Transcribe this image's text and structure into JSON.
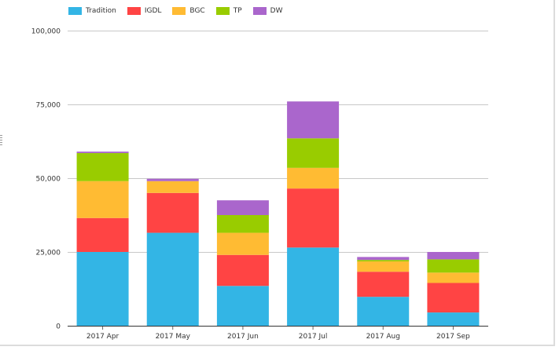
{
  "chart_data": {
    "type": "bar",
    "stacked": true,
    "title": "",
    "xlabel": "",
    "ylabel": "",
    "categories": [
      "2017 Apr",
      "2017 May",
      "2017 Jun",
      "2017 Jul",
      "2017 Aug",
      "2017 Sep"
    ],
    "series": [
      {
        "name": "Tradition",
        "color": "#33b5e5",
        "values": [
          25000,
          31500,
          13500,
          26500,
          9800,
          4500
        ]
      },
      {
        "name": "IGDL",
        "color": "#ff4444",
        "values": [
          11500,
          13500,
          10500,
          20000,
          8500,
          10000
        ]
      },
      {
        "name": "BGC",
        "color": "#ffbb33",
        "values": [
          12500,
          4000,
          7500,
          7000,
          3500,
          3500
        ]
      },
      {
        "name": "TP",
        "color": "#99cc00",
        "values": [
          9500,
          0,
          6000,
          10000,
          500,
          4500
        ]
      },
      {
        "name": "DW",
        "color": "#aa66cc",
        "values": [
          500,
          800,
          5000,
          12500,
          1000,
          2500
        ]
      }
    ],
    "ylim": [
      0,
      100000
    ],
    "yticks": [
      0,
      25000,
      50000,
      75000,
      100000
    ],
    "ytick_labels": [
      "0",
      "25,000",
      "50,000",
      "75,000",
      "100,000"
    ],
    "grid": true,
    "legend_position": "top-left"
  }
}
